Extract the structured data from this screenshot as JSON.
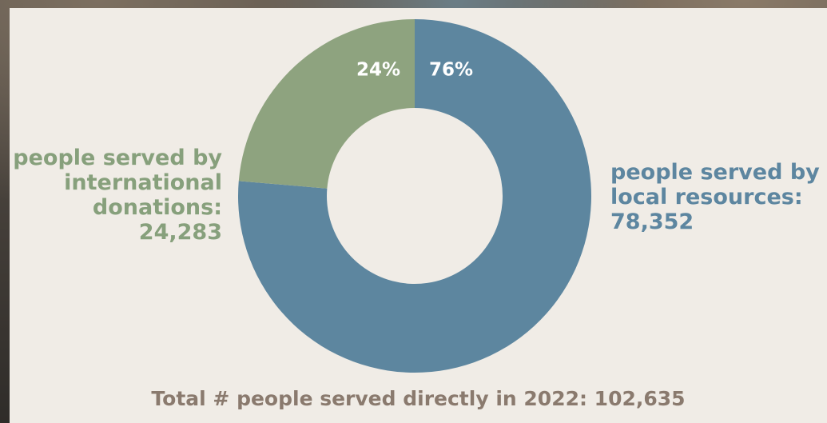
{
  "chart_data": {
    "type": "pie",
    "variant": "donut",
    "slices": [
      {
        "label": "people served by local resources",
        "value": 78352,
        "percent": 76,
        "percent_label": "76%",
        "color": "#5d869f"
      },
      {
        "label": "people served by international donations",
        "value": 24283,
        "percent": 24,
        "percent_label": "24%",
        "color": "#8ea37f"
      }
    ],
    "total": 102635
  },
  "labels": {
    "left": {
      "line1": "people served by",
      "line2": "international",
      "line3": "donations:",
      "line4": "24,283"
    },
    "right": {
      "line1": "people served by",
      "line2": "local resources:",
      "line3": "78,352"
    },
    "total": "Total # people served directly in 2022: 102,635"
  },
  "colors": {
    "background": "#f0ece6",
    "local": "#5d869f",
    "international": "#8ea37f",
    "total_text": "#8a7a6e"
  }
}
